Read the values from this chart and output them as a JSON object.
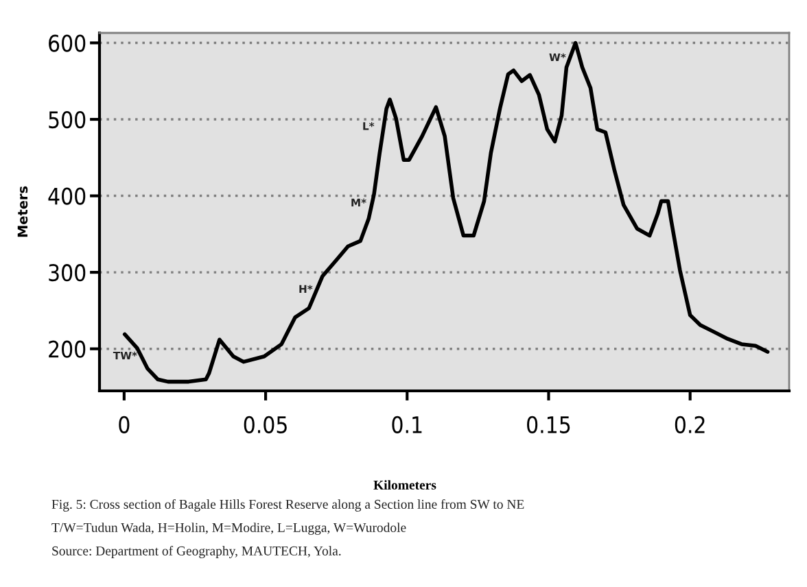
{
  "chart_data": {
    "type": "line",
    "xlabel": "Kilometers",
    "ylabel": "Meters",
    "x": [
      0.0002,
      0.0046,
      0.0083,
      0.0119,
      0.0155,
      0.0228,
      0.0289,
      0.03,
      0.0337,
      0.0386,
      0.0422,
      0.0495,
      0.0556,
      0.0604,
      0.0653,
      0.0701,
      0.075,
      0.0791,
      0.0835,
      0.0864,
      0.0883,
      0.0903,
      0.0927,
      0.0939,
      0.0961,
      0.0988,
      0.1007,
      0.1053,
      0.1102,
      0.1133,
      0.1163,
      0.1199,
      0.1235,
      0.1272,
      0.1296,
      0.1328,
      0.1357,
      0.1376,
      0.1405,
      0.1434,
      0.1466,
      0.1495,
      0.1522,
      0.1546,
      0.1563,
      0.1595,
      0.1619,
      0.1648,
      0.1672,
      0.1701,
      0.1733,
      0.1765,
      0.1813,
      0.1857,
      0.1886,
      0.1898,
      0.1922,
      0.1934,
      0.1964,
      0.2,
      0.2036,
      0.2085,
      0.2133,
      0.2182,
      0.2231,
      0.2274
    ],
    "series": [
      {
        "color": "#000000",
        "values": [
          219,
          201,
          174,
          160,
          157,
          157,
          160,
          168,
          212,
          190,
          183,
          190,
          206,
          241,
          253,
          295,
          316,
          334,
          341,
          370,
          402,
          456,
          514,
          526,
          501,
          447,
          447,
          478,
          516,
          478,
          397,
          348,
          348,
          393,
          456,
          514,
          559,
          564,
          550,
          558,
          532,
          487,
          471,
          505,
          568,
          600,
          568,
          541,
          487,
          483,
          433,
          388,
          357,
          348,
          377,
          393,
          393,
          366,
          303,
          244,
          231,
          222,
          213,
          206,
          204,
          196
        ]
      }
    ],
    "xlim": [
      -0.0087,
      0.235
    ],
    "ylim": [
      145,
      613
    ],
    "xticks": [
      0,
      0.05,
      0.1,
      0.15,
      0.2
    ],
    "yticks": [
      200,
      300,
      400,
      500,
      600
    ],
    "grid": "y",
    "legend": false,
    "marker": "none",
    "line_style": "solid",
    "annotations": [
      {
        "text": "TW*",
        "x": 0.006,
        "y": 190
      },
      {
        "text": "H*",
        "x": 0.068,
        "y": 277
      },
      {
        "text": "M*",
        "x": 0.087,
        "y": 390
      },
      {
        "text": "L*",
        "x": 0.0898,
        "y": 490
      },
      {
        "text": "W*",
        "x": 0.1575,
        "y": 580
      },
      "Fig. 5: Cross section of Bagale Hills Forest Reserve along a Section line from SW to NE",
      "T/W=Tudun Wada, H=Holin, M=Modire, L=Lugga, W=Wurodole",
      "Source: Department of Geography, MAUTECH, Yola."
    ]
  }
}
